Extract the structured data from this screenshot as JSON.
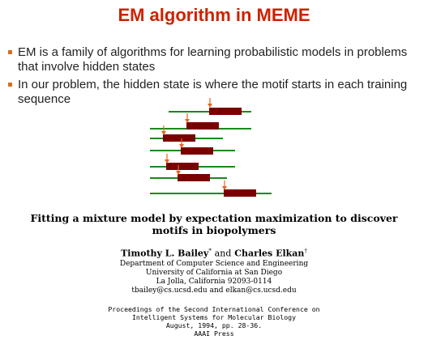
{
  "slide": {
    "title": "EM algorithm in MEME",
    "bullets": [
      "EM is a family of algorithms for learning probabilistic models in problems that involve hidden states",
      "In our problem, the hidden state is where the motif starts in each training sequence"
    ]
  },
  "colors": {
    "title": "#cc2200",
    "bullet_mark": "#d4701f",
    "sequence_line": "#1a8a1a",
    "motif_box": "#7a0000",
    "arrow": "#e8641e"
  },
  "paper": {
    "title_line1": "Fitting a mixture model by expectation maximization to discover",
    "title_line2": "motifs in biopolymers",
    "author1": "Timothy L. Bailey",
    "author1_mark": "*",
    "and": "and",
    "author2": "Charles Elkan",
    "author2_mark": "†",
    "affiliation": [
      "Department of Computer Science and Engineering",
      "University of California at San Diego",
      "La Jolla, California 92093-0114",
      "tbailey@cs.ucsd.edu and elkan@cs.ucsd.edu"
    ],
    "proceedings": [
      "Proceedings of the Second International Conference on",
      "Intelligent Systems for Molecular Biology",
      "August, 1994, pp. 28-36.",
      "AAAI Press"
    ]
  }
}
